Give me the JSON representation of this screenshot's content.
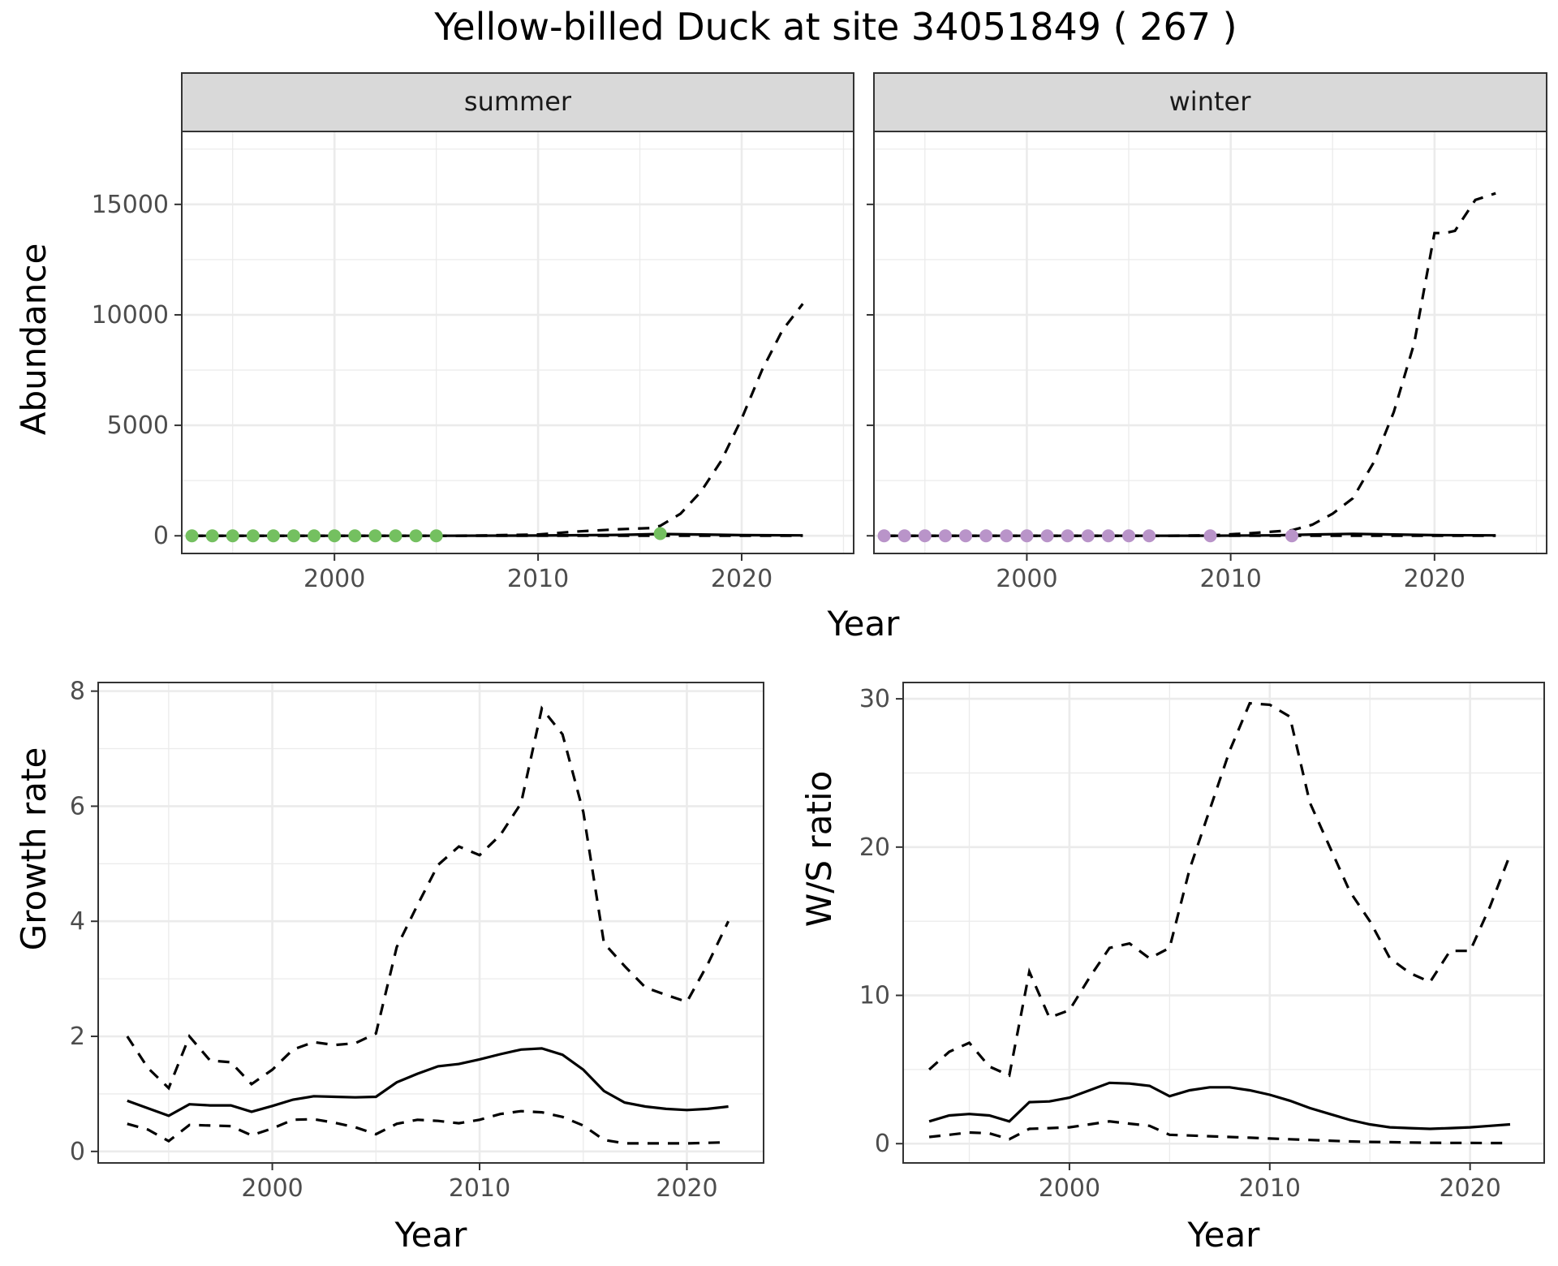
{
  "title": "Yellow-billed Duck at site 34051849 ( 267 )",
  "colors": {
    "summer_points": "#74c060",
    "winter_points": "#b994c9",
    "strip_fill": "#d9d9d9"
  },
  "chart_data": [
    {
      "id": "abundance_summer",
      "type": "line",
      "facet": "summer",
      "xlabel": "Year",
      "ylabel": "Abundance",
      "xlim": [
        1992.5,
        2025.5
      ],
      "ylim": [
        -800,
        18300
      ],
      "xticks": [
        2000,
        2010,
        2020
      ],
      "xminor": [
        1995,
        2005,
        2015,
        2025
      ],
      "yticks": [
        0,
        5000,
        10000,
        15000
      ],
      "yminor": [
        2500,
        7500,
        12500,
        17500
      ],
      "grid": true,
      "series": [
        {
          "style": "solid",
          "x": [
            1993,
            1995,
            2000,
            2005,
            2010,
            2014,
            2016,
            2018,
            2020,
            2023
          ],
          "y": [
            0,
            0,
            0,
            0,
            10,
            40,
            80,
            60,
            30,
            20
          ]
        },
        {
          "style": "dashed",
          "x": [
            1993,
            1995,
            2000,
            2005,
            2007,
            2010,
            2012,
            2014,
            2015.5,
            2016,
            2017,
            2018,
            2019,
            2020,
            2021,
            2022,
            2023
          ],
          "y": [
            0,
            0,
            0,
            0,
            10,
            60,
            200,
            300,
            350,
            450,
            1000,
            2000,
            3400,
            5300,
            7500,
            9300,
            10500
          ]
        },
        {
          "style": "dashed",
          "x": [
            1993,
            2005,
            2010,
            2016,
            2018,
            2023
          ],
          "y": [
            0,
            0,
            0,
            5,
            5,
            2
          ]
        },
        {
          "style": "points",
          "x": [
            1993,
            1994,
            1995,
            1996,
            1997,
            1998,
            1999,
            2000,
            2001,
            2002,
            2003,
            2004,
            2005,
            2016
          ],
          "y": [
            0,
            0,
            0,
            0,
            0,
            0,
            0,
            0,
            0,
            0,
            0,
            0,
            0,
            100
          ]
        }
      ]
    },
    {
      "id": "abundance_winter",
      "type": "line",
      "facet": "winter",
      "xlabel": "Year",
      "ylabel": "",
      "xlim": [
        1992.5,
        2025.5
      ],
      "ylim": [
        -800,
        18300
      ],
      "xticks": [
        2000,
        2010,
        2020
      ],
      "xminor": [
        1995,
        2005,
        2015,
        2025
      ],
      "yticks": [
        0,
        5000,
        10000,
        15000
      ],
      "yminor": [
        2500,
        7500,
        12500,
        17500
      ],
      "grid": true,
      "series": [
        {
          "style": "solid",
          "x": [
            1993,
            1995,
            2000,
            2005,
            2009,
            2012,
            2014,
            2016,
            2018,
            2020,
            2023
          ],
          "y": [
            0,
            0,
            0,
            0,
            5,
            20,
            60,
            90,
            60,
            30,
            20
          ]
        },
        {
          "style": "dashed",
          "x": [
            1993,
            2000,
            2006,
            2009,
            2011,
            2013,
            2014,
            2015,
            2016,
            2017,
            2018,
            2019,
            2020,
            2020.5,
            2021,
            2022,
            2023
          ],
          "y": [
            0,
            0,
            0,
            20,
            120,
            250,
            500,
            1000,
            1700,
            3300,
            5600,
            8700,
            13700,
            13700,
            13800,
            15200,
            15500
          ]
        },
        {
          "style": "dashed",
          "x": [
            1993,
            2005,
            2013,
            2016,
            2018,
            2023
          ],
          "y": [
            0,
            0,
            2,
            5,
            5,
            2
          ]
        },
        {
          "style": "points",
          "x": [
            1993,
            1994,
            1995,
            1996,
            1997,
            1998,
            1999,
            2000,
            2001,
            2002,
            2003,
            2004,
            2005,
            2006,
            2009,
            2013
          ],
          "y": [
            0,
            0,
            0,
            0,
            0,
            0,
            0,
            0,
            0,
            0,
            0,
            0,
            0,
            0,
            0,
            0
          ]
        }
      ]
    },
    {
      "id": "growth_rate",
      "type": "line",
      "xlabel": "Year",
      "ylabel": "Growth rate",
      "xlim": [
        1991.6,
        2023.7
      ],
      "ylim": [
        -0.2,
        8.15
      ],
      "xticks": [
        2000,
        2010,
        2020
      ],
      "xminor": [
        1995,
        2005,
        2015
      ],
      "yticks": [
        0,
        2,
        4,
        6,
        8
      ],
      "yminor": [
        1,
        3,
        5,
        7
      ],
      "grid": true,
      "series": [
        {
          "style": "solid",
          "x": [
            1993,
            1994,
            1995,
            1996,
            1997,
            1998,
            1999,
            2000,
            2001,
            2002,
            2003,
            2004,
            2005,
            2006,
            2007,
            2008,
            2009,
            2010,
            2011,
            2012,
            2013,
            2014,
            2015,
            2016,
            2017,
            2018,
            2019,
            2020,
            2021,
            2022
          ],
          "y": [
            0.88,
            0.75,
            0.62,
            0.82,
            0.8,
            0.8,
            0.69,
            0.79,
            0.9,
            0.96,
            0.95,
            0.94,
            0.95,
            1.2,
            1.35,
            1.48,
            1.52,
            1.6,
            1.69,
            1.77,
            1.79,
            1.68,
            1.42,
            1.05,
            0.85,
            0.78,
            0.74,
            0.72,
            0.74,
            0.78
          ]
        },
        {
          "style": "dashed",
          "x": [
            1993,
            1994,
            1995,
            1996,
            1997,
            1998,
            1999,
            2000,
            2001,
            2002,
            2003,
            2004,
            2005,
            2006,
            2007,
            2008,
            2009,
            2010,
            2011,
            2012,
            2013,
            2014,
            2015,
            2016,
            2017,
            2018,
            2019,
            2020,
            2021,
            2022
          ],
          "y": [
            2.0,
            1.45,
            1.1,
            2.0,
            1.58,
            1.55,
            1.17,
            1.42,
            1.77,
            1.9,
            1.85,
            1.88,
            2.05,
            3.55,
            4.28,
            4.98,
            5.3,
            5.15,
            5.5,
            6.05,
            7.7,
            7.25,
            5.9,
            3.62,
            3.22,
            2.85,
            2.72,
            2.6,
            3.25,
            4.0
          ]
        },
        {
          "style": "dashed",
          "x": [
            1993,
            1994,
            1995,
            1996,
            1997,
            1998,
            1999,
            2000,
            2001,
            2002,
            2003,
            2004,
            2005,
            2006,
            2007,
            2008,
            2009,
            2010,
            2011,
            2012,
            2013,
            2014,
            2015,
            2016,
            2017,
            2018,
            2019,
            2020,
            2021,
            2022
          ],
          "y": [
            0.48,
            0.38,
            0.18,
            0.46,
            0.45,
            0.44,
            0.28,
            0.4,
            0.55,
            0.56,
            0.5,
            0.42,
            0.3,
            0.48,
            0.55,
            0.53,
            0.49,
            0.55,
            0.65,
            0.7,
            0.68,
            0.6,
            0.45,
            0.2,
            0.14,
            0.14,
            0.14,
            0.14,
            0.15,
            0.16
          ]
        }
      ]
    },
    {
      "id": "ws_ratio",
      "type": "line",
      "xlabel": "Year",
      "ylabel": "W/S ratio",
      "xlim": [
        1991.7,
        2023.7
      ],
      "ylim": [
        -1.3,
        31.1
      ],
      "xticks": [
        2000,
        2010,
        2020
      ],
      "xminor": [
        1995,
        2005,
        2015
      ],
      "yticks": [
        0,
        10,
        20,
        30
      ],
      "yminor": [
        5,
        15,
        25
      ],
      "grid": true,
      "series": [
        {
          "style": "solid",
          "x": [
            1993,
            1994,
            1995,
            1996,
            1997,
            1998,
            1999,
            2000,
            2001,
            2002,
            2003,
            2004,
            2005,
            2006,
            2007,
            2008,
            2009,
            2010,
            2011,
            2012,
            2013,
            2014,
            2015,
            2016,
            2017,
            2018,
            2019,
            2020,
            2021,
            2022
          ],
          "y": [
            1.5,
            1.9,
            2.0,
            1.9,
            1.5,
            2.8,
            2.85,
            3.1,
            3.6,
            4.1,
            4.05,
            3.9,
            3.2,
            3.6,
            3.8,
            3.8,
            3.6,
            3.3,
            2.9,
            2.4,
            2.0,
            1.6,
            1.3,
            1.1,
            1.05,
            1.0,
            1.05,
            1.1,
            1.2,
            1.3
          ]
        },
        {
          "style": "dashed",
          "x": [
            1993,
            1994,
            1995,
            1996,
            1997,
            1998,
            1999,
            2000,
            2001,
            2002,
            2003,
            2004,
            2005,
            2006,
            2007,
            2008,
            2009,
            2010,
            2011,
            2012,
            2013,
            2014,
            2015,
            2016,
            2017,
            2018,
            2019,
            2020,
            2021,
            2022
          ],
          "y": [
            5.0,
            6.2,
            6.8,
            5.2,
            4.6,
            11.6,
            8.5,
            9.0,
            11.2,
            13.2,
            13.5,
            12.5,
            13.2,
            18.5,
            22.5,
            26.5,
            29.7,
            29.6,
            28.8,
            23.0,
            20.0,
            17.0,
            15.0,
            12.5,
            11.5,
            10.9,
            13.0,
            13.0,
            16.0,
            19.5
          ]
        },
        {
          "style": "dashed",
          "x": [
            1993,
            1994,
            1995,
            1996,
            1997,
            1998,
            1999,
            2000,
            2001,
            2002,
            2003,
            2004,
            2005,
            2006,
            2007,
            2008,
            2009,
            2010,
            2011,
            2012,
            2013,
            2014,
            2015,
            2016,
            2017,
            2018,
            2019,
            2020,
            2021,
            2022
          ],
          "y": [
            0.45,
            0.6,
            0.75,
            0.7,
            0.3,
            1.0,
            1.05,
            1.1,
            1.3,
            1.5,
            1.35,
            1.2,
            0.6,
            0.55,
            0.5,
            0.45,
            0.4,
            0.35,
            0.3,
            0.25,
            0.2,
            0.15,
            0.12,
            0.1,
            0.08,
            0.06,
            0.05,
            0.05,
            0.04,
            0.04
          ]
        }
      ]
    }
  ]
}
